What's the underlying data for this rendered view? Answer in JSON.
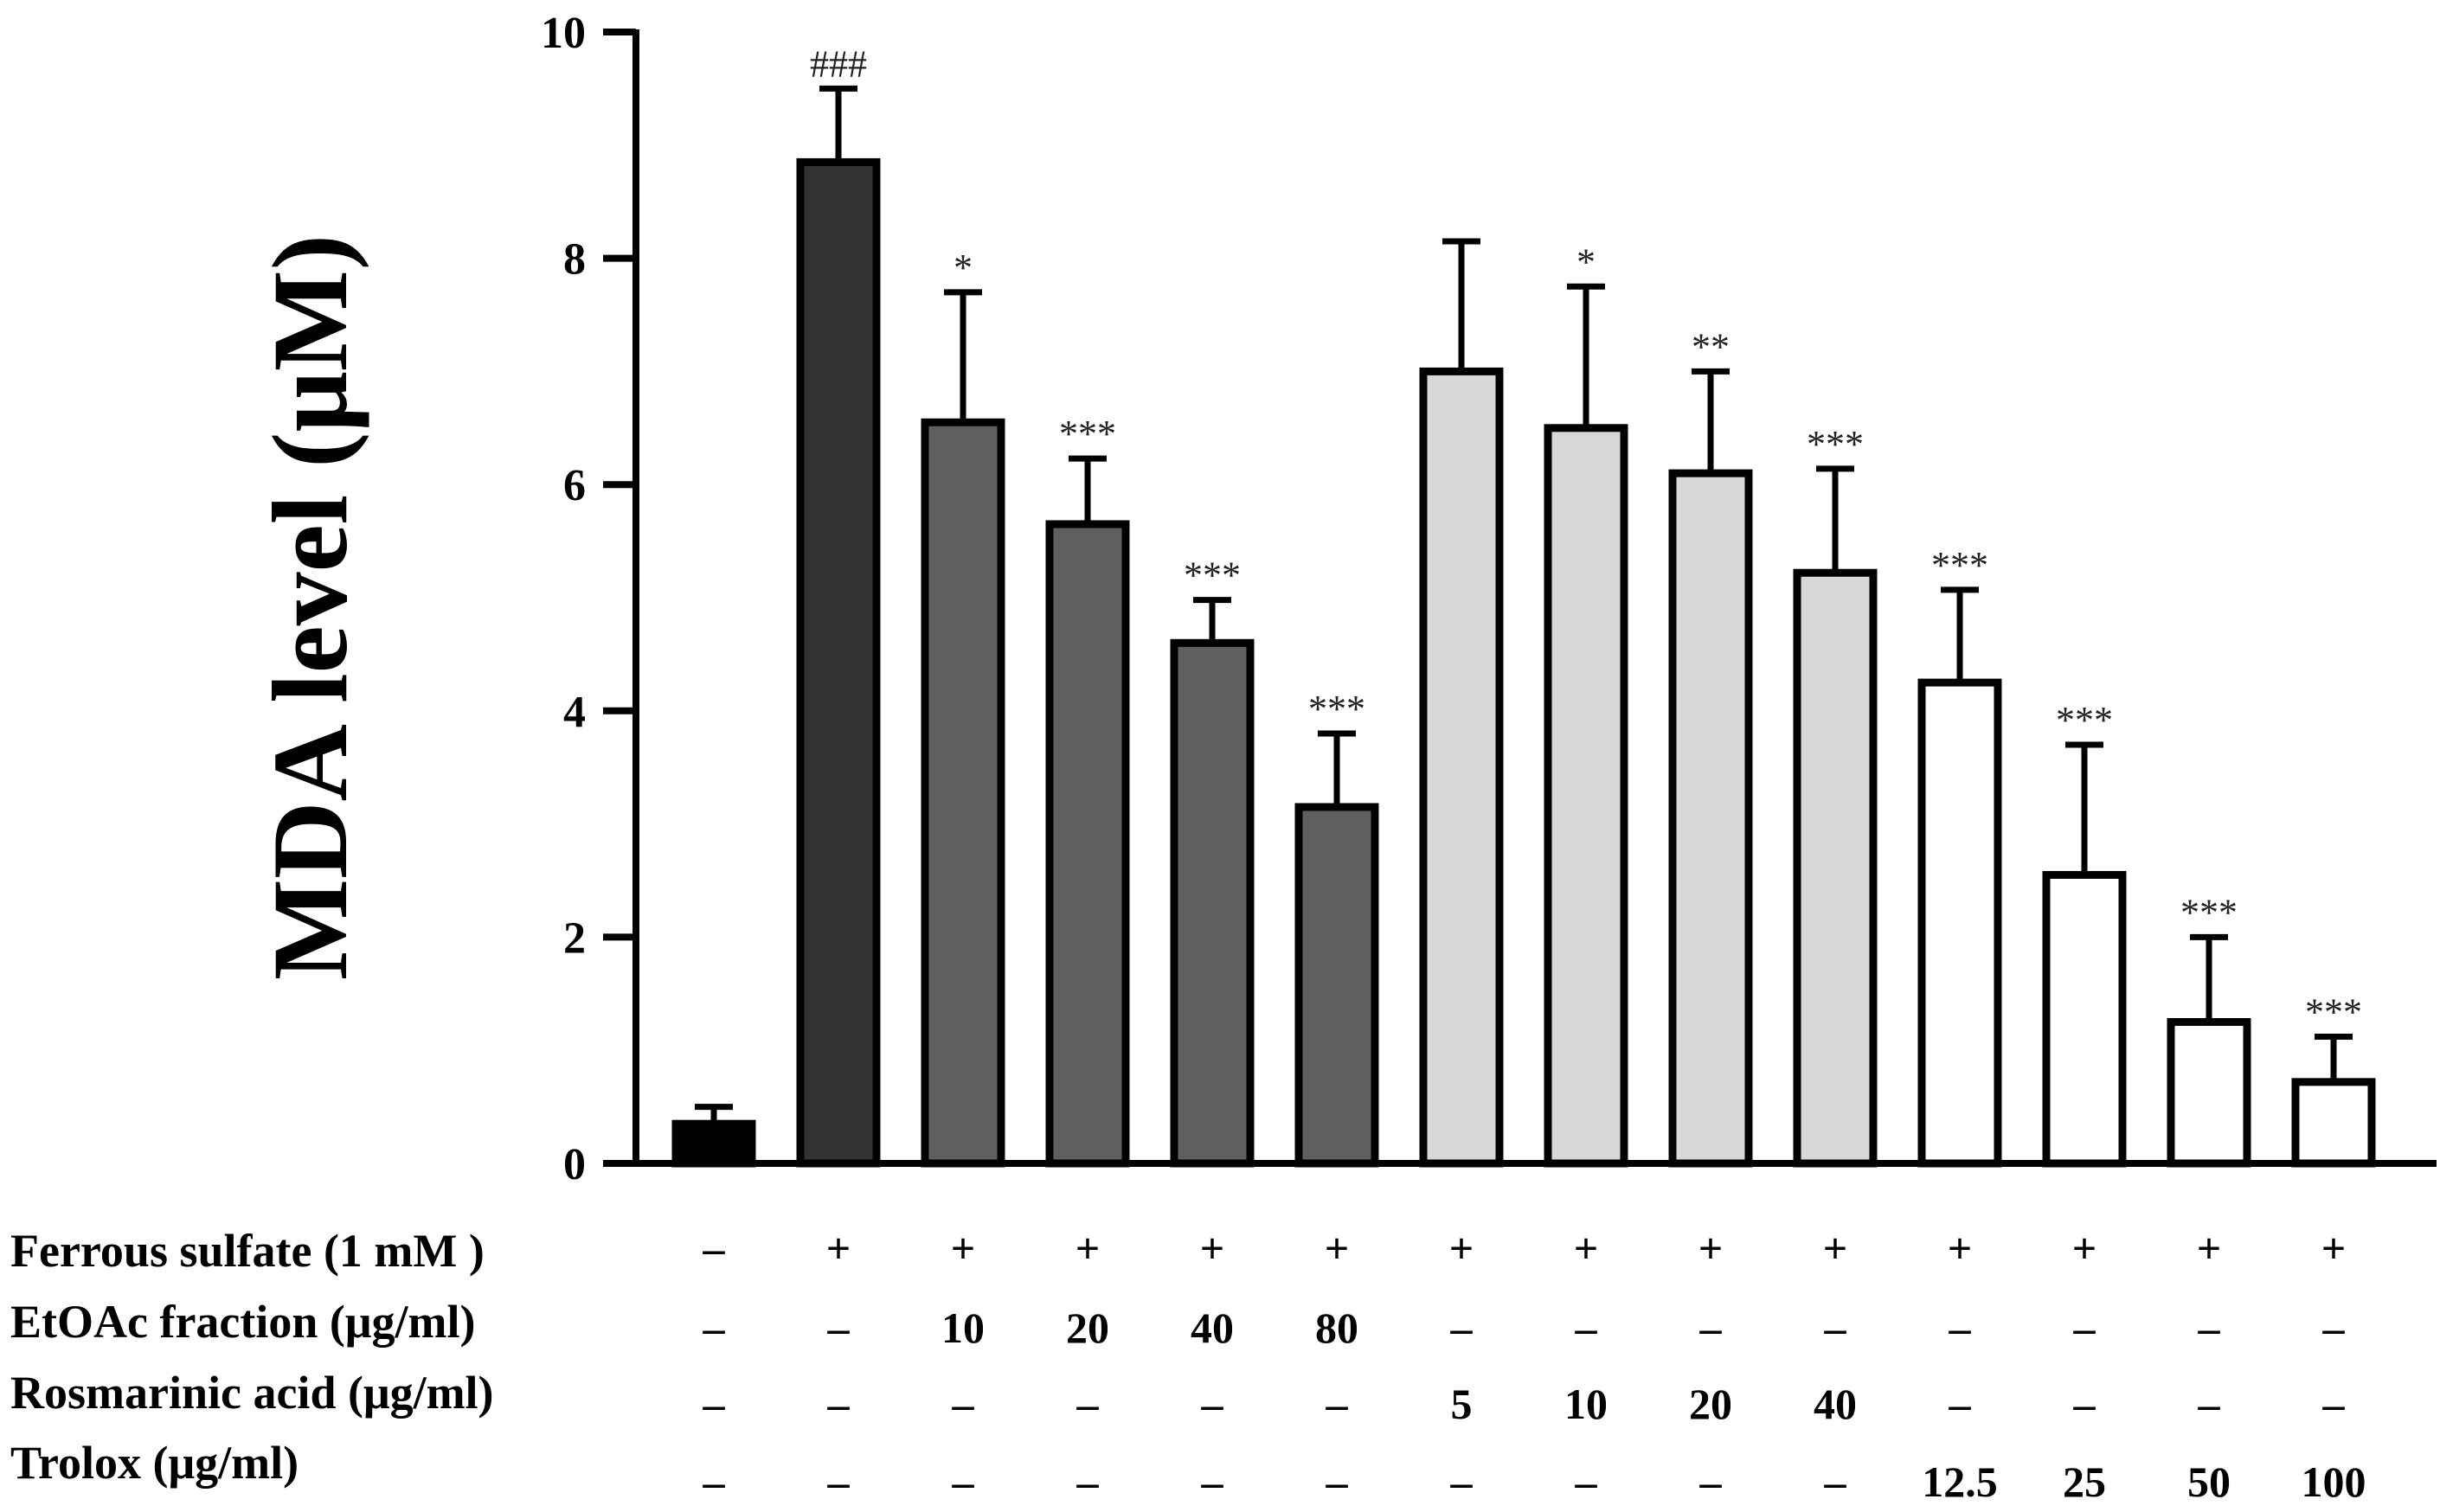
{
  "chart_data": {
    "type": "bar",
    "title": "",
    "xlabel": "",
    "ylabel": "MDA level (μM)",
    "ylim": [
      0,
      10
    ],
    "yticks": [
      0,
      2,
      4,
      6,
      8,
      10
    ],
    "grid": false,
    "values": [
      0.35,
      8.85,
      6.55,
      5.65,
      4.6,
      3.15,
      7.0,
      6.5,
      6.1,
      5.22,
      4.25,
      2.55,
      1.25,
      0.72
    ],
    "errors": [
      0.15,
      0.65,
      1.15,
      0.58,
      0.38,
      0.65,
      1.15,
      1.25,
      0.9,
      0.92,
      0.82,
      1.15,
      0.75,
      0.4
    ],
    "significance": [
      "",
      "###",
      "*",
      "***",
      "***",
      "***",
      "",
      "*",
      "**",
      "***",
      "***",
      "***",
      "***",
      "***"
    ],
    "groups": [
      "control",
      "ferrous",
      "etoac",
      "etoac",
      "etoac",
      "etoac",
      "rosmarinic",
      "rosmarinic",
      "rosmarinic",
      "rosmarinic",
      "trolox",
      "trolox",
      "trolox",
      "trolox"
    ],
    "group_colors": {
      "control": "#000000",
      "ferrous": "#333333",
      "etoac": "#5f5f5f",
      "rosmarinic": "#d8d8d8",
      "trolox": "#ffffff"
    },
    "treatment_rows": [
      {
        "label": "Ferrous sulfate  (1 mM )",
        "values": [
          "–",
          "+",
          "+",
          "+",
          "+",
          "+",
          "+",
          "+",
          "+",
          "+",
          "+",
          "+",
          "+",
          "+"
        ]
      },
      {
        "label": "EtOAc fraction (μg/ml)",
        "values": [
          "–",
          "–",
          "10",
          "20",
          "40",
          "80",
          "–",
          "–",
          "–",
          "–",
          "–",
          "–",
          "–",
          "–"
        ]
      },
      {
        "label": "Rosmarinic acid (μg/ml)",
        "values": [
          "–",
          "–",
          "–",
          "–",
          "–",
          "–",
          "5",
          "10",
          "20",
          "40",
          "–",
          "–",
          "–",
          "–"
        ]
      },
      {
        "label": "Trolox (μg/ml)",
        "values": [
          "–",
          "–",
          "–",
          "–",
          "–",
          "–",
          "–",
          "–",
          "–",
          "–",
          "12.5",
          "25",
          "50",
          "100"
        ]
      }
    ]
  }
}
